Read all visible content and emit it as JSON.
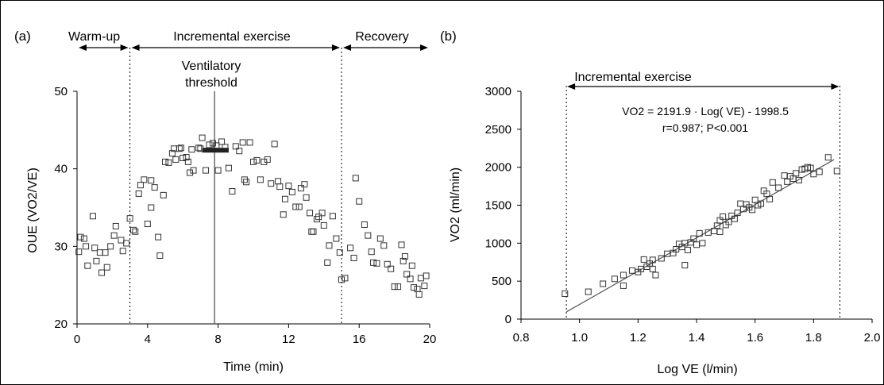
{
  "chart_data": [
    {
      "type": "scatter",
      "panel_label": "(a)",
      "xlabel": "Time (min)",
      "ylabel": "OUE (VO2/VE)",
      "xlim": [
        0,
        20
      ],
      "ylim": [
        20,
        50
      ],
      "xticks": [
        "0",
        "4",
        "8",
        "12",
        "16",
        "20"
      ],
      "yticks": [
        "20",
        "30",
        "40",
        "50"
      ],
      "phases": [
        "Warm-up",
        "Incremental exercise",
        "Recovery"
      ],
      "phase_boundaries": [
        3,
        15
      ],
      "threshold_label_1": "Ventilatory",
      "threshold_label_2": "threshold",
      "threshold_x": 7.8,
      "plateau": {
        "x_start": 7.1,
        "x_end": 8.6,
        "y": 42.4
      },
      "points": [
        [
          0.1,
          29.3
        ],
        [
          0.2,
          31.2
        ],
        [
          0.4,
          31.0
        ],
        [
          0.5,
          30.0
        ],
        [
          0.6,
          27.5
        ],
        [
          0.9,
          33.9
        ],
        [
          1.0,
          29.8
        ],
        [
          1.1,
          28.1
        ],
        [
          1.3,
          29.2
        ],
        [
          1.4,
          26.6
        ],
        [
          1.6,
          29.2
        ],
        [
          1.7,
          27.3
        ],
        [
          1.9,
          30.0
        ],
        [
          2.1,
          31.4
        ],
        [
          2.2,
          32.6
        ],
        [
          2.5,
          30.8
        ],
        [
          2.6,
          29.4
        ],
        [
          2.8,
          30.4
        ],
        [
          3.0,
          33.6
        ],
        [
          3.2,
          32.1
        ],
        [
          3.3,
          31.9
        ],
        [
          3.5,
          36.8
        ],
        [
          3.6,
          37.9
        ],
        [
          3.8,
          38.6
        ],
        [
          4.0,
          32.9
        ],
        [
          4.2,
          38.5
        ],
        [
          4.2,
          35.0
        ],
        [
          4.4,
          37.6
        ],
        [
          4.6,
          31.2
        ],
        [
          4.7,
          28.8
        ],
        [
          4.9,
          36.6
        ],
        [
          5.0,
          40.9
        ],
        [
          5.2,
          40.8
        ],
        [
          5.4,
          42.0
        ],
        [
          5.5,
          42.6
        ],
        [
          5.6,
          41.2
        ],
        [
          5.8,
          42.6
        ],
        [
          5.9,
          42.7
        ],
        [
          6.0,
          41.4
        ],
        [
          6.2,
          41.5
        ],
        [
          6.3,
          40.9
        ],
        [
          6.4,
          39.5
        ],
        [
          6.5,
          42.5
        ],
        [
          6.6,
          39.8
        ],
        [
          6.9,
          42.7
        ],
        [
          7.0,
          42.6
        ],
        [
          7.1,
          44.0
        ],
        [
          7.3,
          39.8
        ],
        [
          7.5,
          43.1
        ],
        [
          7.7,
          43.3
        ],
        [
          7.9,
          43.0
        ],
        [
          8.0,
          39.8
        ],
        [
          8.2,
          43.5
        ],
        [
          8.4,
          42.8
        ],
        [
          8.6,
          40.1
        ],
        [
          8.8,
          37.1
        ],
        [
          9.0,
          42.9
        ],
        [
          9.2,
          42.3
        ],
        [
          9.4,
          43.4
        ],
        [
          9.5,
          38.6
        ],
        [
          9.6,
          38.3
        ],
        [
          9.8,
          43.4
        ],
        [
          10.0,
          40.9
        ],
        [
          10.2,
          41.1
        ],
        [
          10.4,
          38.6
        ],
        [
          10.6,
          40.9
        ],
        [
          10.8,
          41.2
        ],
        [
          11.0,
          38.1
        ],
        [
          11.2,
          43.2
        ],
        [
          11.4,
          38.4
        ],
        [
          11.5,
          37.7
        ],
        [
          11.7,
          34.1
        ],
        [
          11.8,
          36.1
        ],
        [
          12.0,
          37.8
        ],
        [
          12.2,
          37.0
        ],
        [
          12.4,
          35.1
        ],
        [
          12.6,
          35.1
        ],
        [
          12.7,
          37.5
        ],
        [
          12.9,
          38.0
        ],
        [
          13.0,
          36.3
        ],
        [
          13.2,
          34.3
        ],
        [
          13.3,
          31.9
        ],
        [
          13.4,
          31.9
        ],
        [
          13.6,
          33.5
        ],
        [
          13.7,
          33.8
        ],
        [
          13.9,
          34.3
        ],
        [
          14.0,
          32.7
        ],
        [
          14.2,
          27.9
        ],
        [
          14.3,
          30.1
        ],
        [
          14.5,
          33.9
        ],
        [
          14.7,
          31.0
        ],
        [
          14.9,
          29.2
        ],
        [
          15.0,
          25.7
        ],
        [
          15.2,
          25.9
        ],
        [
          15.5,
          29.8
        ],
        [
          15.7,
          28.5
        ],
        [
          15.8,
          38.8
        ],
        [
          16.0,
          35.8
        ],
        [
          16.3,
          32.8
        ],
        [
          16.5,
          31.4
        ],
        [
          16.7,
          29.3
        ],
        [
          16.8,
          27.9
        ],
        [
          17.0,
          27.8
        ],
        [
          17.2,
          31.0
        ],
        [
          17.4,
          30.1
        ],
        [
          17.6,
          27.7
        ],
        [
          17.8,
          27.1
        ],
        [
          18.0,
          24.8
        ],
        [
          18.2,
          24.8
        ],
        [
          18.4,
          30.2
        ],
        [
          18.5,
          28.1
        ],
        [
          18.6,
          28.7
        ],
        [
          18.7,
          26.4
        ],
        [
          18.9,
          25.8
        ],
        [
          19.0,
          27.5
        ],
        [
          19.1,
          24.7
        ],
        [
          19.3,
          24.5
        ],
        [
          19.4,
          23.8
        ],
        [
          19.5,
          25.9
        ],
        [
          19.7,
          24.9
        ],
        [
          19.8,
          26.2
        ]
      ]
    },
    {
      "type": "scatter",
      "panel_label": "(b)",
      "xlabel": "Log VE (l/min)",
      "ylabel": "VO2 (ml/min)",
      "xlim": [
        0.8,
        2.0
      ],
      "ylim": [
        0,
        3000
      ],
      "xticks": [
        "0.8",
        "1.0",
        "1.2",
        "1.4",
        "1.6",
        "1.8",
        "2.0"
      ],
      "yticks": [
        "0",
        "500",
        "1000",
        "1500",
        "2000",
        "2500",
        "3000"
      ],
      "region_label": "Incremental exercise",
      "region": [
        0.955,
        1.89
      ],
      "equation": "VO2 = 2191.9 · Log( VE) - 1998.5",
      "stats": "r=0.987; P<0.001",
      "fit": {
        "slope": 2191.9,
        "intercept": -1998.5,
        "x_range": [
          0.955,
          1.87
        ]
      },
      "points": [
        [
          0.95,
          335
        ],
        [
          1.03,
          360
        ],
        [
          1.08,
          465
        ],
        [
          1.12,
          530
        ],
        [
          1.15,
          580
        ],
        [
          1.15,
          440
        ],
        [
          1.18,
          640
        ],
        [
          1.2,
          620
        ],
        [
          1.21,
          660
        ],
        [
          1.22,
          785
        ],
        [
          1.23,
          690
        ],
        [
          1.24,
          730
        ],
        [
          1.25,
          780
        ],
        [
          1.25,
          660
        ],
        [
          1.26,
          580
        ],
        [
          1.28,
          800
        ],
        [
          1.3,
          860
        ],
        [
          1.32,
          870
        ],
        [
          1.33,
          920
        ],
        [
          1.34,
          990
        ],
        [
          1.35,
          950
        ],
        [
          1.36,
          1000
        ],
        [
          1.36,
          710
        ],
        [
          1.37,
          910
        ],
        [
          1.38,
          1010
        ],
        [
          1.39,
          1060
        ],
        [
          1.4,
          980
        ],
        [
          1.41,
          1130
        ],
        [
          1.42,
          1000
        ],
        [
          1.44,
          1140
        ],
        [
          1.46,
          1160
        ],
        [
          1.47,
          1230
        ],
        [
          1.48,
          1150
        ],
        [
          1.48,
          1300
        ],
        [
          1.49,
          1350
        ],
        [
          1.5,
          1240
        ],
        [
          1.51,
          1280
        ],
        [
          1.52,
          1360
        ],
        [
          1.53,
          1320
        ],
        [
          1.54,
          1400
        ],
        [
          1.55,
          1520
        ],
        [
          1.56,
          1450
        ],
        [
          1.57,
          1510
        ],
        [
          1.58,
          1470
        ],
        [
          1.59,
          1440
        ],
        [
          1.6,
          1570
        ],
        [
          1.61,
          1500
        ],
        [
          1.62,
          1520
        ],
        [
          1.63,
          1690
        ],
        [
          1.64,
          1650
        ],
        [
          1.65,
          1580
        ],
        [
          1.66,
          1800
        ],
        [
          1.68,
          1730
        ],
        [
          1.7,
          1890
        ],
        [
          1.71,
          1810
        ],
        [
          1.72,
          1880
        ],
        [
          1.73,
          1850
        ],
        [
          1.74,
          1920
        ],
        [
          1.75,
          1830
        ],
        [
          1.76,
          1970
        ],
        [
          1.77,
          1980
        ],
        [
          1.78,
          2000
        ],
        [
          1.79,
          1990
        ],
        [
          1.8,
          1910
        ],
        [
          1.82,
          1940
        ],
        [
          1.85,
          2130
        ],
        [
          1.88,
          1950
        ]
      ]
    }
  ]
}
